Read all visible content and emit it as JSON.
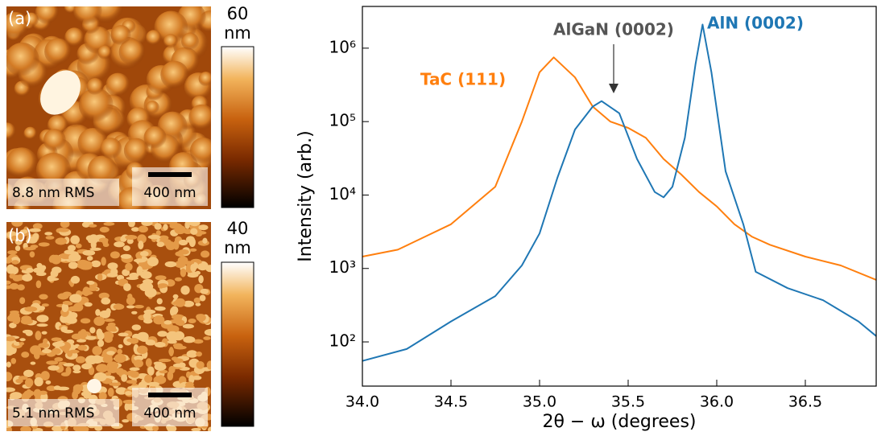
{
  "panels": [
    {
      "label": "(a)",
      "scale_max": "60",
      "scale_unit": "nm",
      "rms": "8.8 nm RMS",
      "scale_bar": "400 nm"
    },
    {
      "label": "(b)",
      "scale_max": "40",
      "scale_unit": "nm",
      "rms": "5.1 nm RMS",
      "scale_bar": "400 nm"
    }
  ],
  "chart_data": {
    "type": "line",
    "xlabel": "2θ − ω (degrees)",
    "ylabel": "Intensity (arb.)",
    "log_y": true,
    "xlim": [
      34.0,
      36.9
    ],
    "ylim": [
      25,
      3700000
    ],
    "xticks": [
      {
        "value": 34,
        "label": "34.0"
      },
      34.5,
      {
        "value": 35,
        "label": "35.0"
      },
      35.5,
      {
        "value": 36,
        "label": "36.0"
      },
      36.5
    ],
    "yticks": [
      {
        "value": 100,
        "label": "10²"
      },
      {
        "value": 1000,
        "label": "10³"
      },
      {
        "value": 10000,
        "label": "10⁴"
      },
      {
        "value": 100000,
        "label": "10⁵"
      },
      {
        "value": 1000000,
        "label": "10⁶"
      }
    ],
    "series": [
      {
        "name": "TaC (111)",
        "color": "#ff7f0e",
        "x": [
          34.0,
          34.2,
          34.5,
          34.75,
          34.9,
          35.0,
          35.08,
          35.2,
          35.3,
          35.4,
          35.5,
          35.6,
          35.7,
          35.8,
          35.9,
          36.0,
          36.1,
          36.2,
          36.3,
          36.5,
          36.7,
          36.9
        ],
        "values": [
          1450,
          1800,
          4000,
          13000,
          100000,
          470000,
          750000,
          400000,
          160000,
          100000,
          82000,
          60000,
          31000,
          19000,
          11000,
          7000,
          4000,
          2700,
          2100,
          1450,
          1100,
          700
        ]
      },
      {
        "name": "AlN (0002)",
        "color": "#1f77b4",
        "x": [
          34.0,
          34.25,
          34.5,
          34.75,
          34.9,
          35.0,
          35.1,
          35.2,
          35.3,
          35.35,
          35.45,
          35.55,
          35.65,
          35.7,
          35.75,
          35.82,
          35.88,
          35.92,
          35.97,
          36.05,
          36.15,
          36.22,
          36.4,
          36.6,
          36.8,
          36.9
        ],
        "values": [
          55,
          80,
          190,
          420,
          1100,
          3000,
          17000,
          78000,
          160000,
          190000,
          130000,
          31000,
          11000,
          9300,
          13000,
          60000,
          600000,
          2100000,
          470000,
          21000,
          4000,
          900,
          540,
          370,
          190,
          120
        ]
      }
    ],
    "annotations": [
      {
        "text": "TaC (111)",
        "color": "#ff7f0e"
      },
      {
        "text": "AlGaN (0002)",
        "color": "#555555"
      },
      {
        "text": "AlN (0002)",
        "color": "#1f77b4"
      }
    ]
  }
}
